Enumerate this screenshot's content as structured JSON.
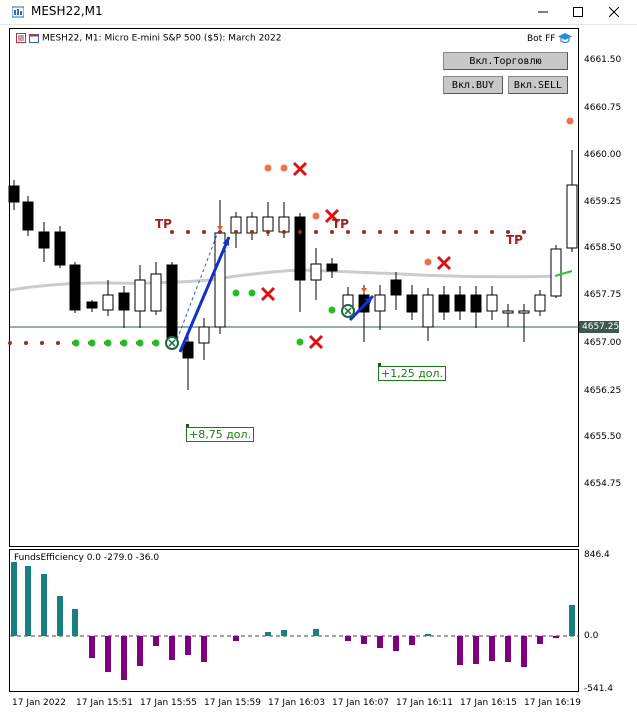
{
  "window": {
    "title": "MESH22,M1",
    "minimize_icon": "minimize-icon",
    "maximize_icon": "maximize-icon",
    "close_icon": "close-icon"
  },
  "chart_header": {
    "text": "MESH22, M1:  Micro E-mini S&P 500 ($5): March 2022",
    "bot_label": "Bot FF"
  },
  "buttons": {
    "trade": "Вкл.Торговлю",
    "buy": "Вкл.BUY",
    "sell": "Вкл.SELL"
  },
  "price_axis": {
    "labels": [
      "4661.50",
      "4660.75",
      "4660.00",
      "4659.25",
      "4658.50",
      "4657.75",
      "4657.00",
      "4656.25",
      "4655.50",
      "4654.75"
    ],
    "current_price": "4657.25"
  },
  "indicator": {
    "title": "FundsEfficiency 0.0 -279.0 -36.0",
    "axis_labels": [
      "846.4",
      "0.0",
      "-541.4"
    ]
  },
  "time_axis": [
    "17 Jan 2022",
    "17 Jan 15:51",
    "17 Jan 15:55",
    "17 Jan 15:59",
    "17 Jan 16:03",
    "17 Jan 16:07",
    "17 Jan 16:11",
    "17 Jan 16:15",
    "17 Jan 16:19"
  ],
  "annotations": {
    "profit1": "+8,75 дол.",
    "profit2": "+1,25 дол.",
    "tp": "TP"
  },
  "colors": {
    "bull_body": "#ffffff",
    "bear_body": "#000000",
    "ma_line": "#cccccc",
    "green_dot": "#22bb22",
    "red_dot": "#9b2b2b",
    "salmon_dot": "#f07050",
    "cross": "#e01010",
    "arrow": "#1030d0",
    "hist_pos": "#188080",
    "hist_neg": "#800080"
  }
}
